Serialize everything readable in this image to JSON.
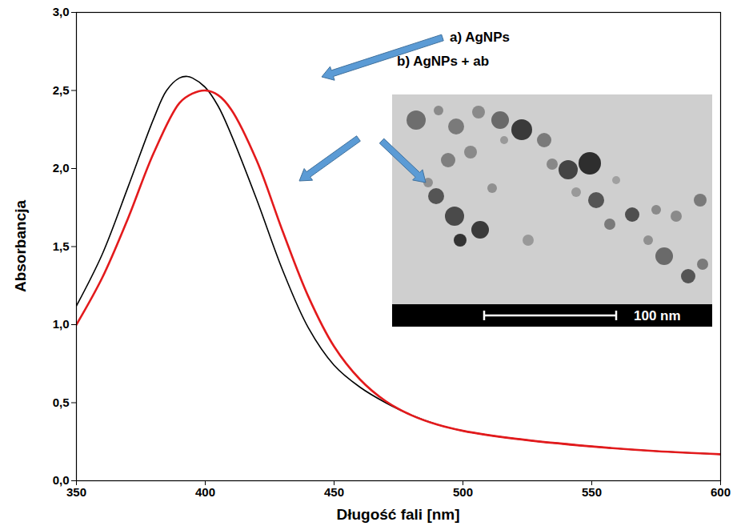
{
  "chart_data": {
    "type": "line",
    "x_label": "Długość fali [nm]",
    "y_label": "Absorbancja",
    "xlim": [
      350,
      600
    ],
    "xticks": [
      350,
      400,
      450,
      500,
      550,
      600
    ],
    "ylim": [
      0,
      3.0
    ],
    "yticks": [
      {
        "value": 0,
        "label": "0,0"
      },
      {
        "value": 0.5,
        "label": "0,5"
      },
      {
        "value": 1.0,
        "label": "1,0"
      },
      {
        "value": 1.5,
        "label": "1,5"
      },
      {
        "value": 2.0,
        "label": "2,0"
      },
      {
        "value": 2.5,
        "label": "2,5"
      },
      {
        "value": 3.0,
        "label": "3,0"
      }
    ],
    "grid": false,
    "series": [
      {
        "name": "a) AgNPs",
        "color": "#000000",
        "x": [
          350,
          360,
          370,
          380,
          385,
          390,
          393,
          395,
          400,
          405,
          410,
          420,
          430,
          440,
          450,
          460,
          470,
          480,
          490,
          500,
          520,
          550,
          575,
          600
        ],
        "values": [
          1.12,
          1.45,
          1.88,
          2.32,
          2.5,
          2.58,
          2.59,
          2.58,
          2.52,
          2.4,
          2.22,
          1.8,
          1.35,
          0.98,
          0.74,
          0.6,
          0.5,
          0.42,
          0.36,
          0.32,
          0.27,
          0.22,
          0.19,
          0.17
        ]
      },
      {
        "name": "b) AgNPs + ab",
        "color": "#e31a1c",
        "x": [
          350,
          360,
          370,
          380,
          390,
          395,
          400,
          405,
          410,
          420,
          430,
          440,
          450,
          460,
          470,
          480,
          490,
          500,
          520,
          550,
          575,
          600
        ],
        "values": [
          1.0,
          1.3,
          1.68,
          2.1,
          2.42,
          2.48,
          2.5,
          2.47,
          2.38,
          2.05,
          1.6,
          1.18,
          0.86,
          0.65,
          0.51,
          0.42,
          0.36,
          0.32,
          0.27,
          0.22,
          0.19,
          0.17
        ]
      }
    ],
    "annotations": [
      "100 nm"
    ]
  }
}
